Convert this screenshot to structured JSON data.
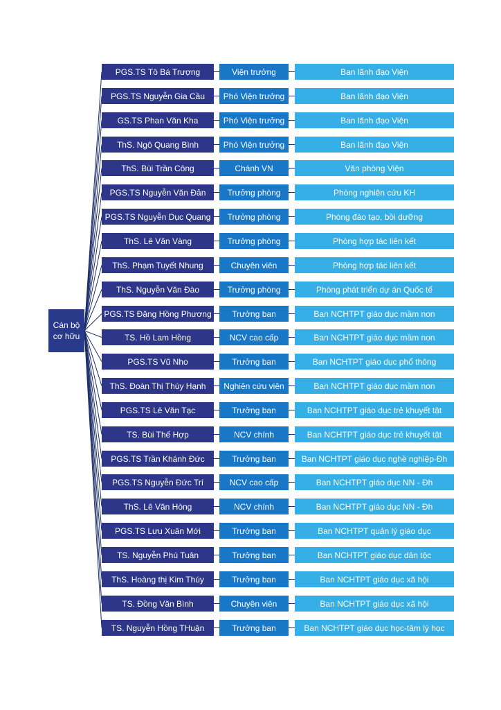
{
  "root": {
    "line1": "Cán bộ",
    "line2": "cơ hữu"
  },
  "rows": [
    {
      "name": "PGS.TS Tô Bá Trượng",
      "role": "Viện trưởng",
      "dept": "Ban lãnh đạo Viện"
    },
    {
      "name": "PGS.TS Nguyễn Gia Cầu",
      "role": "Phó Viện trưởng",
      "dept": "Ban lãnh đạo Viện"
    },
    {
      "name": "GS.TS Phan Văn Kha",
      "role": "Phó Viện trưởng",
      "dept": "Ban lãnh đạo Viện"
    },
    {
      "name": "ThS. Ngô Quang Bình",
      "role": "Phó Viện trưởng",
      "dept": "Ban lãnh đạo Viện"
    },
    {
      "name": "ThS. Bùi Trần Công",
      "role": "Chánh VN",
      "dept": "Văn phòng Viện"
    },
    {
      "name": "PGS.TS Nguyễn Văn Đản",
      "role": "Trưởng phòng",
      "dept": "Phòng nghiên cứu KH"
    },
    {
      "name": "PGS.TS Nguyễn Dục Quang",
      "role": "Trưởng phòng",
      "dept": "Phòng đào tạo, bồi dưỡng"
    },
    {
      "name": "ThS. Lê Văn Vàng",
      "role": "Trưởng phòng",
      "dept": "Phòng hợp tác liên kết"
    },
    {
      "name": "ThS. Phạm Tuyết Nhung",
      "role": "Chuyên viên",
      "dept": "Phòng hợp tác liên kết"
    },
    {
      "name": "ThS. Nguyễn Văn Đào",
      "role": "Trưởng phòng",
      "dept": "Phòng phát triển dự án Quốc tế"
    },
    {
      "name": "PGS.TS Đặng Hồng Phương",
      "role": "Trưởng ban",
      "dept": "Ban NCHTPT giáo dục mầm non"
    },
    {
      "name": "TS. Hồ Lam Hồng",
      "role": "NCV cao cấp",
      "dept": "Ban NCHTPT giáo dục mầm non"
    },
    {
      "name": "PGS.TS Vũ Nho",
      "role": "Trưởng ban",
      "dept": "Ban NCHTPT giáo dục phổ thông"
    },
    {
      "name": "ThS. Đoàn Thị Thúy Hạnh",
      "role": "Nghiên cứu viên",
      "dept": "Ban NCHTPT giáo dục mầm non"
    },
    {
      "name": "PGS.TS Lê Văn Tạc",
      "role": "Trưởng ban",
      "dept": "Ban NCHTPT giáo dục trẻ khuyết tật"
    },
    {
      "name": "TS. Bùi Thế Hợp",
      "role": "NCV chính",
      "dept": "Ban NCHTPT giáo dục trẻ khuyết tật"
    },
    {
      "name": "PGS.TS Trần Khánh Đức",
      "role": "Trưởng ban",
      "dept": "Ban NCHTPT giáo dục nghề nghiệp-Đh"
    },
    {
      "name": "PGS.TS Nguyễn Đức Trí",
      "role": "NCV cao cấp",
      "dept": "Ban NCHTPT giáo dục NN - Đh"
    },
    {
      "name": "ThS. Lê Văn Hòng",
      "role": "NCV chính",
      "dept": "Ban NCHTPT giáo dục NN - Đh"
    },
    {
      "name": "PGS.TS Lưu Xuân Mới",
      "role": "Trưởng ban",
      "dept": "Ban NCHTPT quản lý giáo dục"
    },
    {
      "name": "TS. Nguyễn Phú Tuân",
      "role": "Trưởng ban",
      "dept": "Ban NCHTPT giáo dục dân tộc"
    },
    {
      "name": "ThS. Hoàng thị Kim Thúy",
      "role": "Trưởng ban",
      "dept": "Ban NCHTPT giáo dục xã hội"
    },
    {
      "name": "TS. Đồng Văn Bình",
      "role": "Chuyên viên",
      "dept": "Ban NCHTPT giáo dục xã hội"
    },
    {
      "name": "TS. Nguyễn Hồng THuận",
      "role": "Trưởng ban",
      "dept": "Ban NCHTPT giáo dục học-tâm lý học"
    }
  ]
}
